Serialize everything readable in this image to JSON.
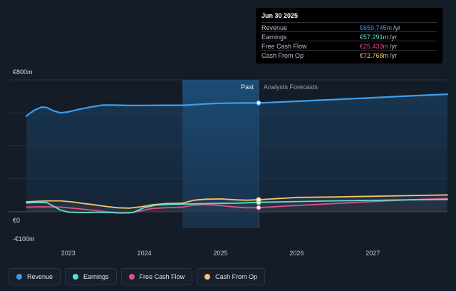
{
  "tooltip": {
    "date": "Jun 30 2025",
    "rows": [
      {
        "label": "Revenue",
        "value": "€659.745m",
        "unit": "/yr",
        "color": "#3d9ef0"
      },
      {
        "label": "Earnings",
        "value": "€57.291m",
        "unit": "/yr",
        "color": "#5ee0d0"
      },
      {
        "label": "Free Cash Flow",
        "value": "€25.433m",
        "unit": "/yr",
        "color": "#e0508a"
      },
      {
        "label": "Cash From Op",
        "value": "€72.768m",
        "unit": "/yr",
        "color": "#f2c46b"
      }
    ]
  },
  "chart_data": {
    "type": "line",
    "y_unit": "€m",
    "ylim": [
      -100,
      800
    ],
    "y_ticks": [
      {
        "value": 800,
        "label": "€800m"
      },
      {
        "value": 0,
        "label": "€0"
      },
      {
        "value": -100,
        "label": "-€100m"
      }
    ],
    "xlim": [
      2022.45,
      2027.98
    ],
    "x_ticks": [
      {
        "value": 2023,
        "label": "2023"
      },
      {
        "value": 2024,
        "label": "2024"
      },
      {
        "value": 2025,
        "label": "2025"
      },
      {
        "value": 2026,
        "label": "2026"
      },
      {
        "value": 2027,
        "label": "2027"
      }
    ],
    "past_label": "Past",
    "forecast_label": "Analysts Forecasts",
    "divider_x": 2025.5,
    "highlight_start": 2024.5,
    "series": [
      {
        "name": "Revenue",
        "color": "#3d9ef0",
        "points": [
          [
            2022.45,
            580
          ],
          [
            2022.55,
            615
          ],
          [
            2022.65,
            635
          ],
          [
            2022.72,
            632
          ],
          [
            2022.8,
            613
          ],
          [
            2022.9,
            600
          ],
          [
            2023.0,
            606
          ],
          [
            2023.15,
            622
          ],
          [
            2023.3,
            636
          ],
          [
            2023.45,
            647
          ],
          [
            2023.6,
            647
          ],
          [
            2023.8,
            645
          ],
          [
            2024.0,
            645
          ],
          [
            2024.2,
            646
          ],
          [
            2024.5,
            646
          ],
          [
            2024.6,
            648
          ],
          [
            2024.8,
            654
          ],
          [
            2025.0,
            658
          ],
          [
            2025.25,
            660
          ],
          [
            2025.5,
            660
          ],
          [
            2026.0,
            670
          ],
          [
            2026.5,
            681
          ],
          [
            2027.0,
            692
          ],
          [
            2027.5,
            703
          ],
          [
            2027.98,
            713
          ]
        ]
      },
      {
        "name": "Earnings",
        "color": "#5ee0d0",
        "points": [
          [
            2022.45,
            53
          ],
          [
            2022.6,
            57
          ],
          [
            2022.72,
            55
          ],
          [
            2022.8,
            35
          ],
          [
            2022.9,
            10
          ],
          [
            2023.0,
            -2
          ],
          [
            2023.2,
            -5
          ],
          [
            2023.4,
            -3
          ],
          [
            2023.55,
            -5
          ],
          [
            2023.7,
            -8
          ],
          [
            2023.85,
            -5
          ],
          [
            2024.0,
            25
          ],
          [
            2024.15,
            40
          ],
          [
            2024.35,
            45
          ],
          [
            2024.6,
            47
          ],
          [
            2024.9,
            50
          ],
          [
            2025.2,
            52
          ],
          [
            2025.5,
            57
          ],
          [
            2026.0,
            62
          ],
          [
            2026.5,
            66
          ],
          [
            2027.0,
            69
          ],
          [
            2027.5,
            72
          ],
          [
            2027.98,
            75
          ]
        ]
      },
      {
        "name": "Free Cash Flow",
        "color": "#e0508a",
        "points": [
          [
            2022.45,
            28
          ],
          [
            2022.6,
            30
          ],
          [
            2022.75,
            30
          ],
          [
            2022.9,
            28
          ],
          [
            2023.05,
            22
          ],
          [
            2023.2,
            15
          ],
          [
            2023.35,
            8
          ],
          [
            2023.5,
            0
          ],
          [
            2023.65,
            -6
          ],
          [
            2023.8,
            -8
          ],
          [
            2023.95,
            5
          ],
          [
            2024.1,
            20
          ],
          [
            2024.3,
            25
          ],
          [
            2024.5,
            28
          ],
          [
            2024.65,
            40
          ],
          [
            2024.8,
            44
          ],
          [
            2025.0,
            38
          ],
          [
            2025.2,
            28
          ],
          [
            2025.35,
            24
          ],
          [
            2025.5,
            25
          ],
          [
            2026.0,
            38
          ],
          [
            2026.5,
            50
          ],
          [
            2027.0,
            62
          ],
          [
            2027.5,
            73
          ],
          [
            2027.98,
            80
          ]
        ]
      },
      {
        "name": "Cash From Op",
        "color": "#f2c46b",
        "points": [
          [
            2022.45,
            60
          ],
          [
            2022.6,
            64
          ],
          [
            2022.75,
            66
          ],
          [
            2022.9,
            66
          ],
          [
            2023.05,
            60
          ],
          [
            2023.2,
            50
          ],
          [
            2023.35,
            42
          ],
          [
            2023.5,
            32
          ],
          [
            2023.65,
            24
          ],
          [
            2023.8,
            22
          ],
          [
            2023.95,
            30
          ],
          [
            2024.1,
            42
          ],
          [
            2024.3,
            50
          ],
          [
            2024.5,
            52
          ],
          [
            2024.65,
            70
          ],
          [
            2024.8,
            76
          ],
          [
            2025.0,
            78
          ],
          [
            2025.2,
            72
          ],
          [
            2025.35,
            70
          ],
          [
            2025.5,
            73
          ],
          [
            2026.0,
            87
          ],
          [
            2026.5,
            90
          ],
          [
            2027.0,
            94
          ],
          [
            2027.5,
            98
          ],
          [
            2027.98,
            102
          ]
        ]
      }
    ]
  },
  "legend": [
    {
      "label": "Revenue",
      "color": "#3d9ef0"
    },
    {
      "label": "Earnings",
      "color": "#5ee0d0"
    },
    {
      "label": "Free Cash Flow",
      "color": "#e0508a"
    },
    {
      "label": "Cash From Op",
      "color": "#f2c46b"
    }
  ]
}
